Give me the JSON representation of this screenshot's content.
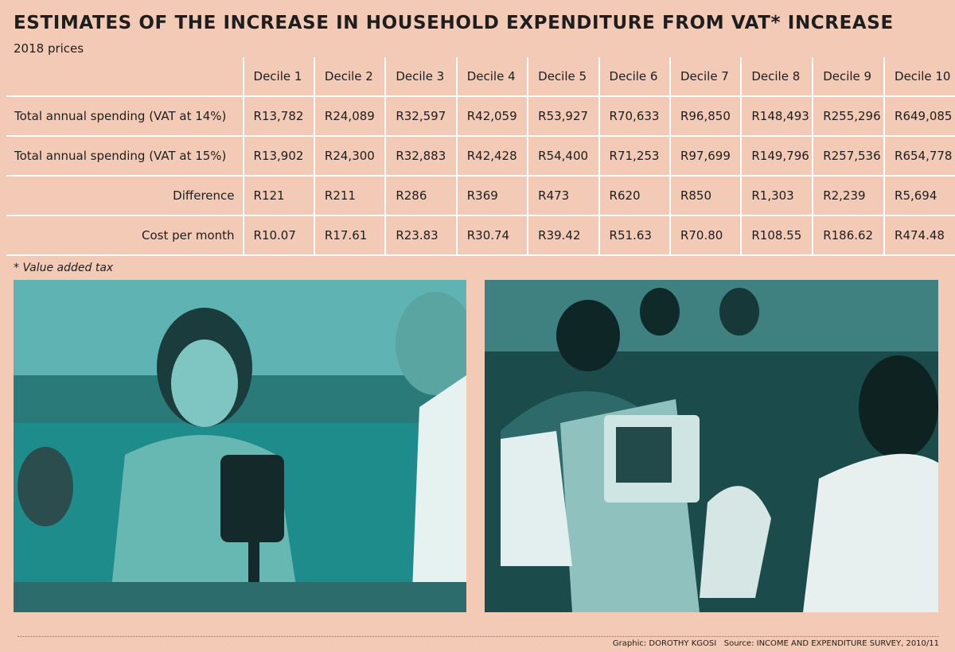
{
  "header": {
    "title": "ESTIMATES OF THE INCREASE IN HOUSEHOLD EXPENDITURE FROM VAT* INCREASE",
    "subtitle": "2018 prices"
  },
  "table": {
    "columns": [
      "Decile 1",
      "Decile 2",
      "Decile 3",
      "Decile 4",
      "Decile 5",
      "Decile 6",
      "Decile 7",
      "Decile 8",
      "Decile 9",
      "Decile 10"
    ],
    "rows": [
      {
        "label": "Total annual spending (VAT at 14%)",
        "cells": [
          "R13,782",
          "R24,089",
          "R32,597",
          "R42,059",
          "R53,927",
          "R70,633",
          "R96,850",
          "R148,493",
          "R255,296",
          "R649,085"
        ]
      },
      {
        "label": "Total annual spending (VAT at 15%)",
        "cells": [
          "R13,902",
          "R24,300",
          "R32,883",
          "R42,428",
          "R54,400",
          "R71,253",
          "R97,699",
          "R149,796",
          "R257,536",
          "R654,778"
        ]
      },
      {
        "label": "Difference",
        "cells": [
          "R121",
          "R211",
          "R286",
          "R369",
          "R473",
          "R620",
          "R850",
          "R1,303",
          "R2,239",
          "R5,694"
        ]
      },
      {
        "label": "Cost per month",
        "cells": [
          "R10.07",
          "R17.61",
          "R23.83",
          "R30.74",
          "R39.42",
          "R51.63",
          "R70.80",
          "R108.55",
          "R186.62",
          "R474.48"
        ]
      }
    ]
  },
  "footnote": "* Value added tax",
  "credits": {
    "graphic": "Graphic: DOROTHY KGOSI",
    "source": "Source: INCOME AND EXPENDITURE SURVEY, 2010/11"
  }
}
